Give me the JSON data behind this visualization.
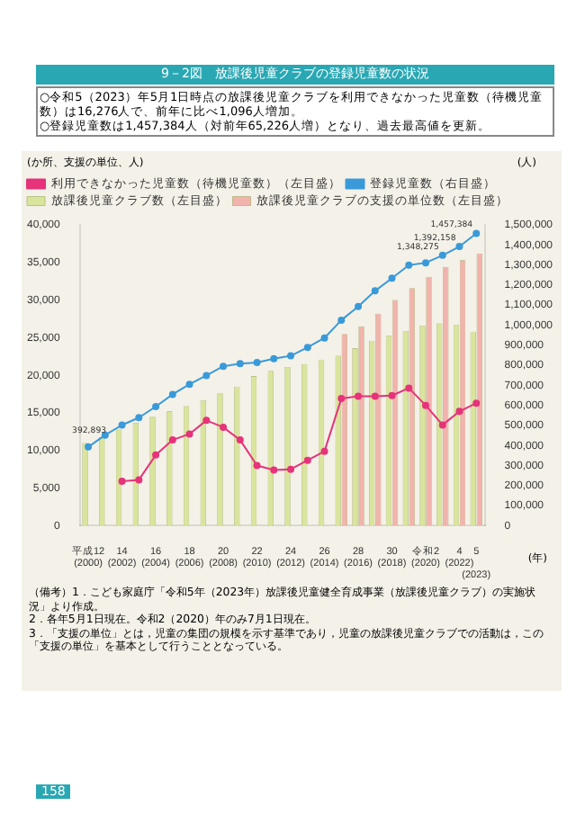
{
  "chart_data": {
    "type": "bar",
    "title": "9－2図　放課後児童クラブの登録児童数の状況",
    "annotations": [
      "○令和5（2023）年5月1日時点の放課後児童クラブを利用できなかった児童数（待機児童数）は16,276人で、前年に比べ1,096人増加。",
      "○登録児童数は1,457,384人（対前年65,226人増）となり、過去最高値を更新。",
      "（備考）1．こども家庭庁「令和5年（2023年）放課後児童健全育成事業（放課後児童クラブ）の実施状況」より作成。",
      "2．各年5月1日現在。令和2（2020）年のみ7月1日現在。",
      "3．「支援の単位」とは，児童の集団の規模を示す基準であり，児童の放課後児童クラブでの活動は，この「支援の単位」を基本として行うこととなっている。",
      "158"
    ],
    "ylabel": "(か所、支援の単位、人)",
    "y2label": "(人)",
    "xlabel": "(年)",
    "categories": [
      "平成12\n(2000)",
      null,
      "14\n(2002)",
      null,
      "16\n(2004)",
      null,
      "18\n(2006)",
      null,
      "20\n(2008)",
      null,
      "22\n(2010)",
      null,
      "24\n(2012)",
      null,
      "26\n(2014)",
      null,
      "28\n(2016)",
      null,
      "30\n(2018)",
      null,
      "令和2\n(2020)",
      null,
      "4\n(2022)",
      "5\n(2023)"
    ],
    "series": [
      {
        "name": "放課後児童クラブ数（左目盛）",
        "color": "#d9e49c",
        "values": [
          11000,
          11800,
          12800,
          13700,
          14500,
          15200,
          15900,
          16700,
          17600,
          18500,
          19900,
          20600,
          21100,
          21500,
          22100,
          22600,
          23600,
          24600,
          25300,
          25900,
          26600,
          26900,
          26700,
          25800
        ]
      },
      {
        "name": "放課後児童クラブの支援の単位数（左目盛）",
        "color": "#f2b3ad",
        "values": [
          null,
          null,
          null,
          null,
          null,
          null,
          null,
          null,
          null,
          null,
          null,
          null,
          null,
          null,
          null,
          25500,
          26500,
          28200,
          30000,
          31600,
          33100,
          34400,
          35300,
          36200
        ]
      },
      {
        "name": "利用できなかった児童数（待機児童数）（左目盛）",
        "type": "line",
        "color": "#e6337a",
        "values": [
          null,
          null,
          5900,
          6100,
          9400,
          11400,
          12200,
          14000,
          13100,
          11400,
          8000,
          7400,
          7500,
          8700,
          9900,
          16900,
          17200,
          17200,
          17300,
          18300,
          16000,
          13400,
          15200,
          16300
        ]
      },
      {
        "name": "登録児童数（右目盛）",
        "type": "line",
        "axis": "y2",
        "color": "#3a9ad9",
        "values": [
          392893,
          452000,
          502000,
          539000,
          594000,
          655000,
          705000,
          749000,
          795000,
          808000,
          814000,
          833000,
          847000,
          889000,
          936000,
          1025000,
          1093000,
          1171000,
          1234000,
          1299000,
          1311000,
          1348275,
          1392158,
          1457384
        ],
        "value_labels": [
          "392,893",
          null,
          null,
          null,
          null,
          null,
          null,
          null,
          null,
          null,
          null,
          null,
          null,
          null,
          null,
          null,
          null,
          null,
          null,
          null,
          null,
          "1,348,275",
          "1,392,158",
          "1,457,384"
        ]
      }
    ],
    "ylim": [
      0,
      40000
    ],
    "yticks": [
      0,
      {
        "value": 5000,
        "label": "5,000"
      },
      {
        "value": 10000,
        "label": "10,000"
      },
      {
        "value": 15000,
        "label": "15,000"
      },
      {
        "value": 20000,
        "label": "20,000"
      },
      {
        "value": 25000,
        "label": "25,000"
      },
      {
        "value": 30000,
        "label": "30,000"
      },
      {
        "value": 35000,
        "label": "35,000"
      },
      {
        "value": 40000,
        "label": "40,000"
      }
    ],
    "y2lim": [
      0,
      1500000
    ],
    "y2ticks": [
      0,
      {
        "value": 100000,
        "label": "100,000"
      },
      {
        "value": 200000,
        "label": "200,000"
      },
      {
        "value": 300000,
        "label": "300,000"
      },
      {
        "value": 400000,
        "label": "400,000"
      },
      {
        "value": 500000,
        "label": "500,000"
      },
      {
        "value": 600000,
        "label": "600,000"
      },
      {
        "value": 700000,
        "label": "700,000"
      },
      {
        "value": 800000,
        "label": "800,000"
      },
      {
        "value": 900000,
        "label": "900,000"
      },
      {
        "value": 1000000,
        "label": "1,000,000"
      },
      {
        "value": 1100000,
        "label": "1,100,000"
      },
      {
        "value": 1200000,
        "label": "1,200,000"
      },
      {
        "value": 1300000,
        "label": "1,300,000"
      },
      {
        "value": 1400000,
        "label": "1,400,000"
      },
      {
        "value": 1500000,
        "label": "1,500,000"
      }
    ],
    "legend": "top left",
    "marker": "circle"
  }
}
